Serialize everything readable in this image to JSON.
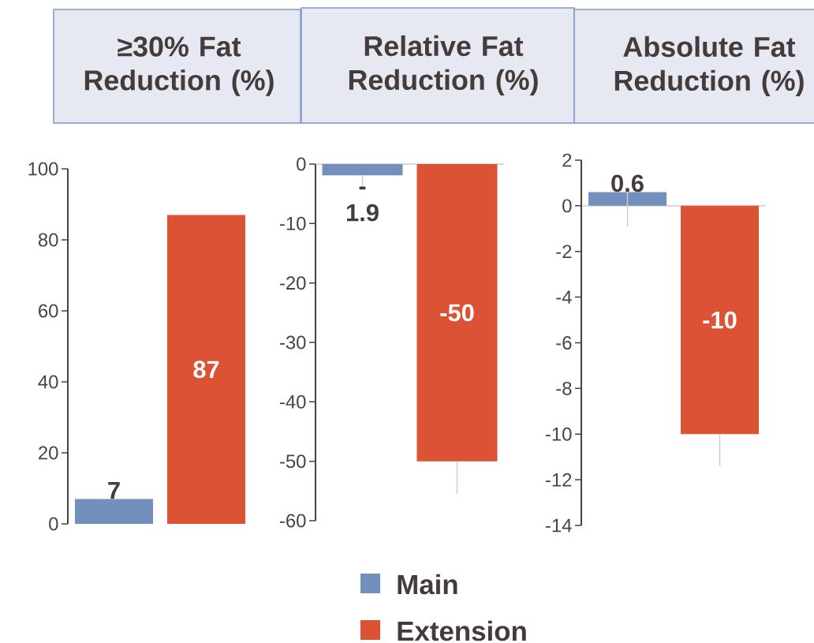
{
  "chart_data": [
    {
      "type": "bar",
      "title": "≥30% Fat Reduction (%)",
      "categories": [
        null
      ],
      "series": [
        {
          "color": "#7390bd",
          "values": [
            7
          ]
        },
        {
          "color": "#dc5235",
          "values": [
            87
          ]
        }
      ],
      "ylim": [
        0,
        100
      ],
      "yticks": [
        0,
        20,
        40,
        60,
        80,
        100
      ],
      "data_labels": true
    },
    {
      "type": "bar",
      "title": "Relative Fat Reduction (%)",
      "categories": [
        null
      ],
      "series": [
        {
          "name": "Main",
          "color": "#7390bd",
          "values": [
            -1.9
          ],
          "errors": [
            [
              -3.8,
              -1.9
            ]
          ]
        },
        {
          "name": "Extension",
          "color": "#dc5235",
          "values": [
            -50
          ],
          "errors": [
            [
              -55.5,
              -50
            ]
          ]
        }
      ],
      "ylim": [
        -60,
        0
      ],
      "yticks": [
        -60,
        -50,
        -40,
        -30,
        -20,
        -10,
        0
      ],
      "data_labels": true,
      "legend": "bottom"
    },
    {
      "type": "bar",
      "title": "Absolute Fat Reduction (%)",
      "categories": [
        null
      ],
      "series": [
        {
          "color": "#7390bd",
          "values": [
            0.6
          ],
          "errors": [
            [
              -0.9,
              0.6
            ]
          ]
        },
        {
          "color": "#dc5235",
          "values": [
            -10
          ],
          "errors": [
            [
              -11.4,
              -10
            ]
          ]
        }
      ],
      "ylim": [
        -14,
        2
      ],
      "yticks": [
        -14,
        -12,
        -10,
        -8,
        -6,
        -4,
        -2,
        0,
        2
      ],
      "data_labels": true
    }
  ]
}
